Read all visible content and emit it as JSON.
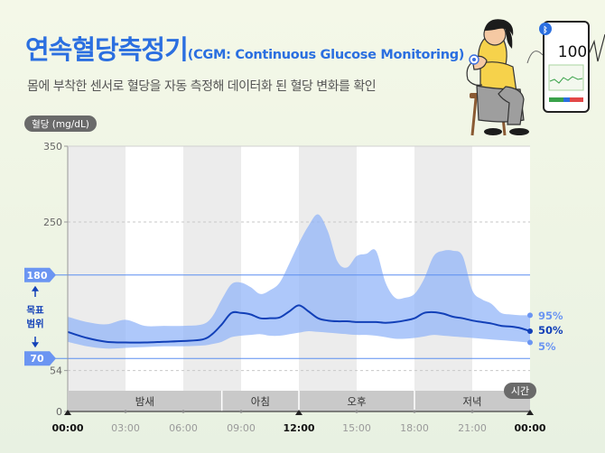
{
  "header": {
    "title": "연속혈당측정기",
    "title_en": "(CGM: Continuous Glucose Monitoring)",
    "subtitle": "몸에 부착한 센서로 혈당을 자동 측정해 데이터화 된 혈당 변화를 확인"
  },
  "device": {
    "reading": "100"
  },
  "colors": {
    "title": "#2b6fe0",
    "band": "#8fb3f8",
    "median": "#1240b8",
    "target_line": "#5b8ef0",
    "label_bg": "#6b95f2",
    "period_bar": "#c9c9c9"
  },
  "chart_data": {
    "type": "area",
    "ylabel": "혈당 (mg/dL)",
    "xlabel": "시간",
    "ylim": [
      0,
      350
    ],
    "xlim": [
      0,
      24
    ],
    "y_ticks": [
      0,
      54,
      250,
      350
    ],
    "x_ticks": [
      "00:00",
      "03:00",
      "06:00",
      "09:00",
      "12:00",
      "15:00",
      "18:00",
      "21:00",
      "00:00"
    ],
    "bold_x_ticks": [
      "00:00",
      "12:00"
    ],
    "target_range": {
      "low": 70,
      "high": 180,
      "low_label": "70",
      "high_label": "180",
      "label": "목표 범위"
    },
    "periods": [
      {
        "label": "밤새",
        "start": 0,
        "end": 8
      },
      {
        "label": "아침",
        "start": 8,
        "end": 12
      },
      {
        "label": "오후",
        "start": 12,
        "end": 18
      },
      {
        "label": "저녁",
        "start": 18,
        "end": 24
      }
    ],
    "x": [
      0,
      1,
      2,
      3,
      4,
      5,
      6,
      7,
      7.5,
      8,
      8.5,
      9,
      9.5,
      10,
      10.5,
      11,
      11.5,
      12,
      12.5,
      13,
      13.5,
      14,
      14.5,
      15,
      15.5,
      16,
      16.5,
      17,
      17.5,
      18,
      18.5,
      19,
      19.5,
      20,
      20.5,
      21,
      21.5,
      22,
      22.5,
      23,
      23.5,
      24
    ],
    "series": [
      {
        "name": "95%",
        "values": [
          125,
          118,
          115,
          121,
          113,
          113,
          113,
          115,
          125,
          148,
          168,
          170,
          164,
          155,
          160,
          170,
          195,
          222,
          245,
          260,
          238,
          198,
          190,
          205,
          208,
          212,
          170,
          150,
          150,
          155,
          175,
          205,
          212,
          212,
          205,
          160,
          148,
          142,
          130,
          128,
          127,
          127
        ]
      },
      {
        "name": "50%",
        "values": [
          105,
          97,
          92,
          91,
          91,
          92,
          93,
          95,
          102,
          115,
          130,
          130,
          128,
          123,
          123,
          124,
          132,
          140,
          132,
          123,
          120,
          119,
          119,
          118,
          118,
          118,
          117,
          118,
          120,
          123,
          130,
          131,
          129,
          125,
          123,
          120,
          118,
          116,
          113,
          112,
          110,
          106
        ]
      },
      {
        "name": "5%",
        "values": [
          92,
          86,
          83,
          84,
          85,
          86,
          86,
          87,
          89,
          92,
          98,
          100,
          101,
          102,
          100,
          100,
          102,
          104,
          106,
          105,
          104,
          103,
          102,
          101,
          101,
          100,
          98,
          96,
          96,
          97,
          99,
          101,
          100,
          99,
          98,
          97,
          96,
          95,
          94,
          93,
          92,
          91
        ]
      }
    ],
    "grid": true
  }
}
